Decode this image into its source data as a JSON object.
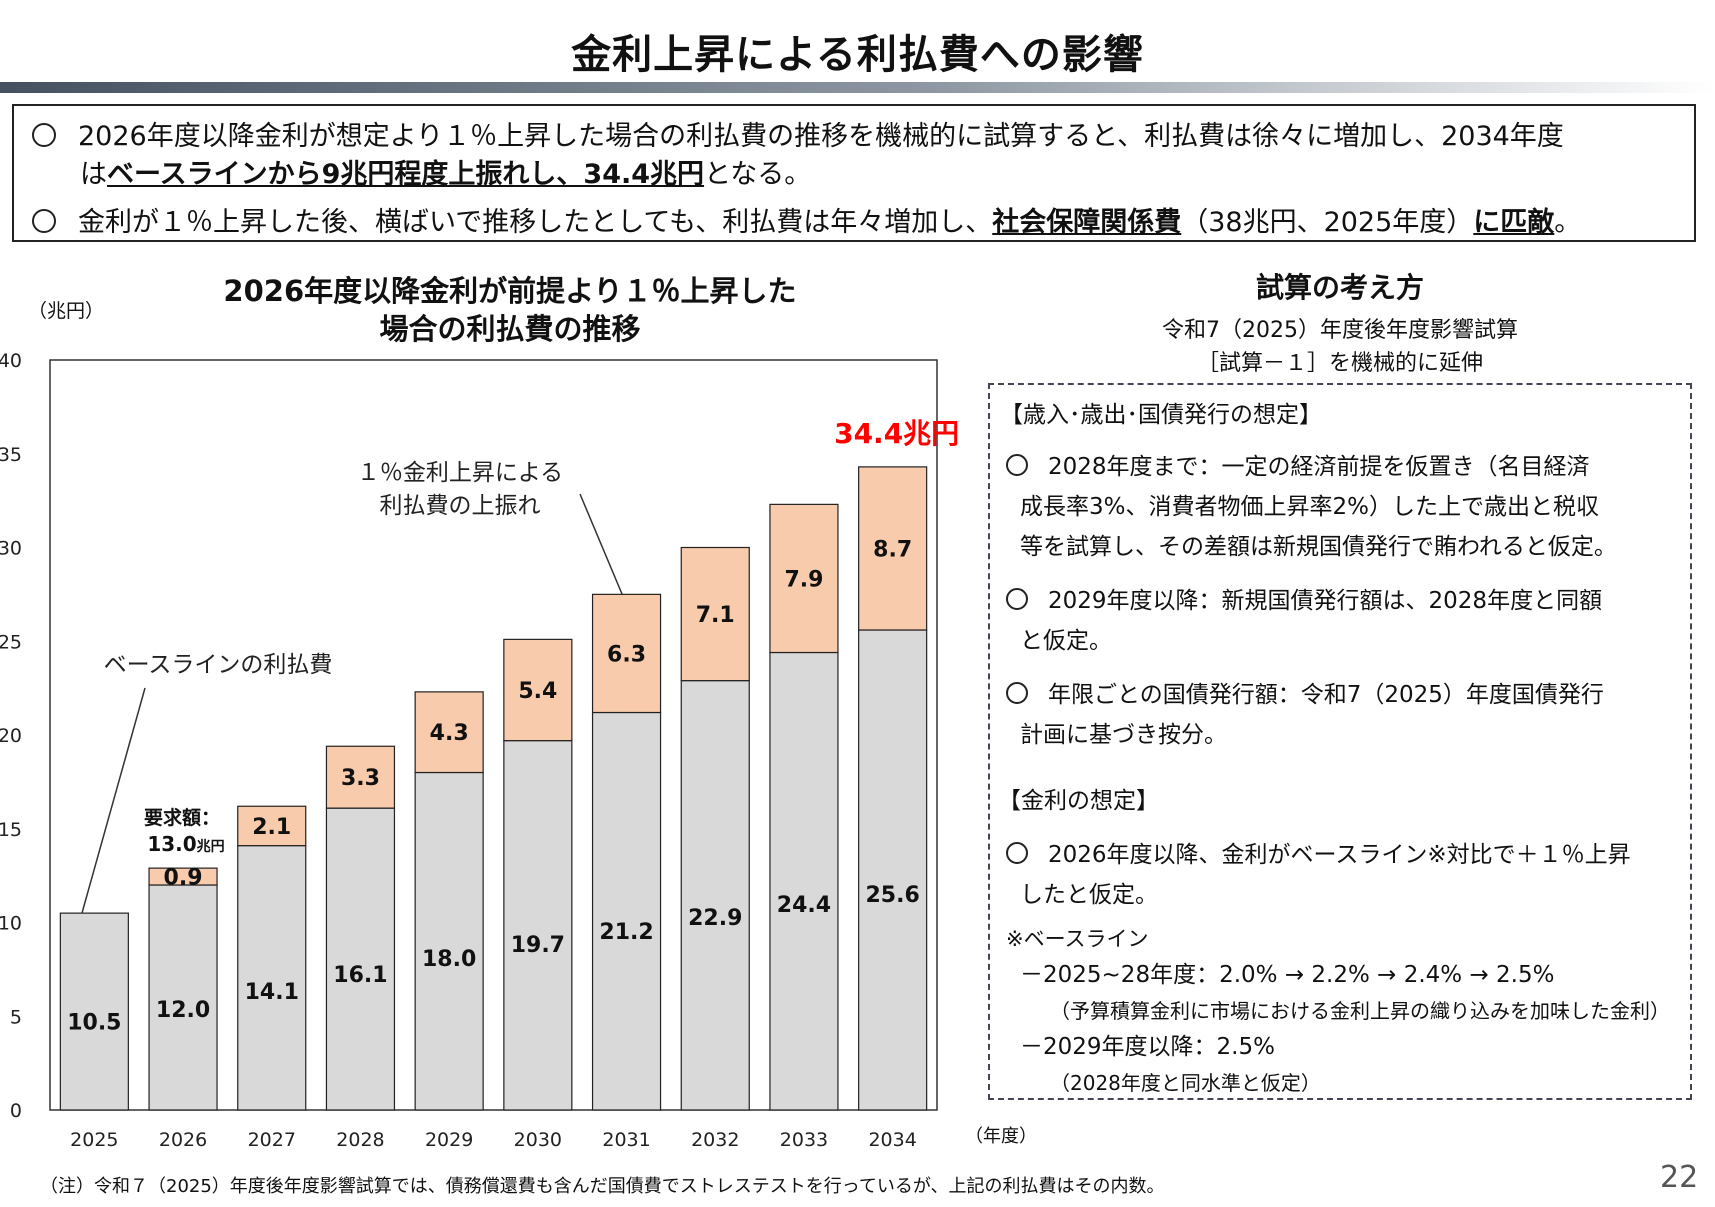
{
  "header": {
    "title": "金利上昇による利払費への影響"
  },
  "summary": {
    "line1": "2026年度以降金利が想定より１％上昇した場合の利払費の推移を機械的に試算すると、利払費は徐々に増加し、2034年度",
    "line2_pre": "は",
    "line2_emph": "ベースラインから9兆円程度上振れし、34.4兆円",
    "line2_post": "となる。",
    "line3_pre": "金利が１％上昇した後、横ばいで推移したとしても、利払費は年々増加し、",
    "line3_emph1": "社会保障関係費",
    "line3_mid": "（38兆円、2025年度）",
    "line3_emph2": "に匹敵",
    "line3_post": "。"
  },
  "chart_data": {
    "type": "bar",
    "stacked": true,
    "title": "2026年度以降金利が前提より１％上昇した\n場合の利払費の推移",
    "title_line1": "2026年度以降金利が前提より１％上昇した",
    "title_line2": "場合の利払費の推移",
    "ylabel": "（兆円）",
    "xlabel": "（年度）",
    "ylim": [
      0,
      40
    ],
    "yticks": [
      0,
      5,
      10,
      15,
      20,
      25,
      30,
      35,
      40
    ],
    "categories": [
      "2025",
      "2026",
      "2027",
      "2028",
      "2029",
      "2030",
      "2031",
      "2032",
      "2033",
      "2034"
    ],
    "series": [
      {
        "values": [
          10.5,
          12.0,
          14.1,
          16.1,
          18.0,
          19.7,
          21.2,
          22.9,
          24.4,
          25.6
        ],
        "color": "#d9d9d9"
      },
      {
        "values": [
          0,
          0.9,
          2.1,
          3.3,
          4.3,
          5.4,
          6.3,
          7.1,
          7.9,
          8.7
        ],
        "color": "#f8cbad"
      }
    ],
    "base_labels": [
      "10.5",
      "12.0",
      "14.1",
      "16.1",
      "18.0",
      "19.7",
      "21.2",
      "22.9",
      "24.4",
      "25.6"
    ],
    "upside_labels": [
      "",
      "0.9",
      "2.1",
      "3.3",
      "4.3",
      "5.4",
      "6.3",
      "7.1",
      "7.9",
      "8.7"
    ],
    "annotations": {
      "total_2034": "34.4兆円",
      "baseline_callout": "ベースラインの利払費",
      "upside_callout_line1": "１％金利上昇による",
      "upside_callout_line2": "利払費の上振れ",
      "request_line1": "要求額：",
      "request_line2_num": "13.0",
      "request_line2_unit": "兆円"
    },
    "accent_color": "#ff0000",
    "grid": false
  },
  "concept": {
    "title": "試算の考え方",
    "sub1": "令和7（2025）年度後年度影響試算",
    "sub2": "［試算－１］を機械的に延伸",
    "sec1_heading": "【歳入･歳出･国債発行の想定】",
    "item1_l1": "2028年度まで：一定の経済前提を仮置き（名目経済",
    "item1_l2": "成長率3%、消費者物価上昇率2%）した上で歳出と税収",
    "item1_l3": "等を試算し、その差額は新規国債発行で賄われると仮定。",
    "item2_l1": "2029年度以降：新規国債発行額は、2028年度と同額",
    "item2_l2": "と仮定。",
    "item3_l1": "年限ごとの国債発行額：令和7（2025）年度国債発行",
    "item3_l2": "計画に基づき按分。",
    "sec2_heading": "【金利の想定】",
    "item4_l1": "2026年度以降、金利がベースライン※対比で＋１％上昇",
    "item4_l2": "したと仮定。",
    "note_head": "※ベースライン",
    "note_l1": "－2025~28年度：2.0% → 2.2% → 2.4% → 2.5%",
    "note_l2": "（予算積算金利に市場における金利上昇の織り込みを加味した金利）",
    "note_l3": "－2029年度以降：2.5%",
    "note_l4": "（2028年度と同水準と仮定）"
  },
  "footer": {
    "note": "（注）令和７（2025）年度後年度影響試算では、債務償還費も含んだ国債費でストレステストを行っているが、上記の利払費はその内数。",
    "page_number": "22"
  }
}
